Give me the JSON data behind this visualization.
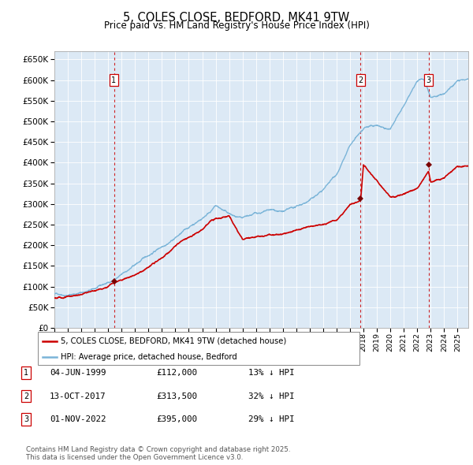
{
  "title": "5, COLES CLOSE, BEDFORD, MK41 9TW",
  "subtitle": "Price paid vs. HM Land Registry's House Price Index (HPI)",
  "title_fontsize": 10.5,
  "subtitle_fontsize": 8.5,
  "plot_bg_color": "#dce9f5",
  "hpi_color": "#7ab4d8",
  "price_color": "#cc0000",
  "sale_marker_color": "#7a0000",
  "vline_color": "#cc0000",
  "ylim": [
    0,
    670000
  ],
  "ytick_step": 50000,
  "legend_label_price": "5, COLES CLOSE, BEDFORD, MK41 9TW (detached house)",
  "legend_label_hpi": "HPI: Average price, detached house, Bedford",
  "sales": [
    {
      "num": 1,
      "date_x": 1999.43,
      "price": 112000,
      "label_date": "04-JUN-1999",
      "label_price": "£112,000",
      "label_hpi": "13% ↓ HPI"
    },
    {
      "num": 2,
      "date_x": 2017.79,
      "price": 313500,
      "label_date": "13-OCT-2017",
      "label_price": "£313,500",
      "label_hpi": "32% ↓ HPI"
    },
    {
      "num": 3,
      "date_x": 2022.84,
      "price": 395000,
      "label_date": "01-NOV-2022",
      "label_price": "£395,000",
      "label_hpi": "29% ↓ HPI"
    }
  ],
  "footer_text": "Contains HM Land Registry data © Crown copyright and database right 2025.\nThis data is licensed under the Open Government Licence v3.0.",
  "xlim_start": 1995.0,
  "xlim_end": 2025.8,
  "hpi_anchors_x": [
    1995,
    1996,
    1997,
    1998,
    1999,
    2000,
    2001,
    2002,
    2003,
    2004,
    2005,
    2006,
    2007,
    2008,
    2009,
    2010,
    2011,
    2012,
    2013,
    2014,
    2015,
    2016,
    2017,
    2018,
    2019,
    2020,
    2021,
    2022,
    2022.5,
    2023,
    2024,
    2025,
    2025.8
  ],
  "hpi_anchors_y": [
    82000,
    83000,
    90000,
    98000,
    110000,
    128000,
    150000,
    172000,
    196000,
    222000,
    245000,
    268000,
    300000,
    278000,
    258000,
    268000,
    272000,
    266000,
    272000,
    288000,
    312000,
    352000,
    418000,
    452000,
    458000,
    452000,
    502000,
    558000,
    562000,
    522000,
    530000,
    562000,
    562000
  ],
  "price_anchors_x": [
    1995,
    1996,
    1997,
    1998,
    1999,
    1999.43,
    2000,
    2001,
    2002,
    2003,
    2004,
    2005,
    2006,
    2007,
    2008,
    2009,
    2010,
    2011,
    2012,
    2013,
    2014,
    2015,
    2016,
    2017,
    2017.79,
    2018,
    2019,
    2020,
    2021,
    2022,
    2022.84,
    2023,
    2024,
    2025,
    2025.8
  ],
  "price_anchors_y": [
    72000,
    74000,
    79000,
    88000,
    100000,
    112000,
    118000,
    135000,
    155000,
    175000,
    202000,
    222000,
    238000,
    268000,
    278000,
    222000,
    232000,
    240000,
    240000,
    248000,
    258000,
    262000,
    272000,
    308000,
    313500,
    398000,
    362000,
    322000,
    332000,
    352000,
    395000,
    368000,
    378000,
    402000,
    402000
  ]
}
